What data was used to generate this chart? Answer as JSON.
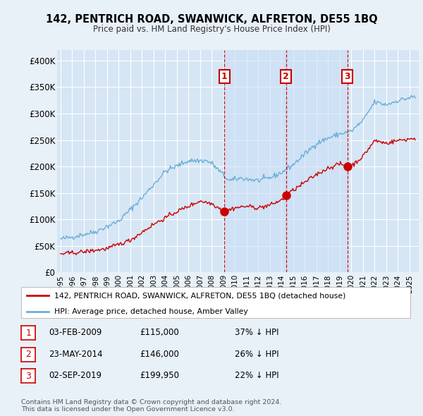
{
  "title": "142, PENTRICH ROAD, SWANWICK, ALFRETON, DE55 1BQ",
  "subtitle": "Price paid vs. HM Land Registry's House Price Index (HPI)",
  "ylim": [
    0,
    420000
  ],
  "yticks": [
    0,
    50000,
    100000,
    150000,
    200000,
    250000,
    300000,
    350000,
    400000
  ],
  "ytick_labels": [
    "£0",
    "£50K",
    "£100K",
    "£150K",
    "£200K",
    "£250K",
    "£300K",
    "£350K",
    "£400K"
  ],
  "hpi_color": "#6baed6",
  "price_color": "#cc0000",
  "dashed_line_color": "#cc0000",
  "background_color": "#e8f0f8",
  "plot_bg_color": "#d6e6f5",
  "shade_color": "#ddeeff",
  "grid_color": "#ffffff",
  "sale_dates": [
    2009.09,
    2014.39,
    2019.67
  ],
  "sale_prices": [
    115000,
    146000,
    199950
  ],
  "sale_labels": [
    "1",
    "2",
    "3"
  ],
  "footnote": "Contains HM Land Registry data © Crown copyright and database right 2024.\nThis data is licensed under the Open Government Licence v3.0.",
  "legend_label_price": "142, PENTRICH ROAD, SWANWICK, ALFRETON, DE55 1BQ (detached house)",
  "legend_label_hpi": "HPI: Average price, detached house, Amber Valley",
  "table_data": [
    [
      "1",
      "03-FEB-2009",
      "£115,000",
      "37% ↓ HPI"
    ],
    [
      "2",
      "23-MAY-2014",
      "£146,000",
      "26% ↓ HPI"
    ],
    [
      "3",
      "02-SEP-2019",
      "£199,950",
      "22% ↓ HPI"
    ]
  ]
}
